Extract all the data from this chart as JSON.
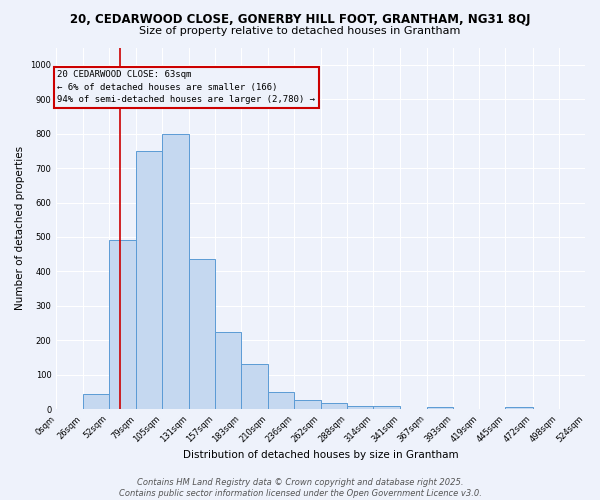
{
  "title_line1": "20, CEDARWOOD CLOSE, GONERBY HILL FOOT, GRANTHAM, NG31 8QJ",
  "title_line2": "Size of property relative to detached houses in Grantham",
  "xlabel": "Distribution of detached houses by size in Grantham",
  "ylabel": "Number of detached properties",
  "bin_edges": [
    0,
    26,
    52,
    79,
    105,
    131,
    157,
    183,
    210,
    236,
    262,
    288,
    314,
    341,
    367,
    393,
    419,
    445,
    472,
    498,
    524
  ],
  "bar_heights": [
    0,
    43,
    490,
    750,
    800,
    435,
    225,
    130,
    50,
    28,
    17,
    10,
    10,
    0,
    7,
    0,
    0,
    7,
    0,
    0
  ],
  "bar_color": "#c5d8f0",
  "bar_edgecolor": "#5b9bd5",
  "ylim": [
    0,
    1050
  ],
  "yticks": [
    0,
    100,
    200,
    300,
    400,
    500,
    600,
    700,
    800,
    900,
    1000
  ],
  "xtick_labels": [
    "0sqm",
    "26sqm",
    "52sqm",
    "79sqm",
    "105sqm",
    "131sqm",
    "157sqm",
    "183sqm",
    "210sqm",
    "236sqm",
    "262sqm",
    "288sqm",
    "314sqm",
    "341sqm",
    "367sqm",
    "393sqm",
    "419sqm",
    "445sqm",
    "472sqm",
    "498sqm",
    "524sqm"
  ],
  "property_size": 63,
  "vline_color": "#cc0000",
  "annotation_text": "20 CEDARWOOD CLOSE: 63sqm\n← 6% of detached houses are smaller (166)\n94% of semi-detached houses are larger (2,780) →",
  "annotation_box_color": "#cc0000",
  "footer_line1": "Contains HM Land Registry data © Crown copyright and database right 2025.",
  "footer_line2": "Contains public sector information licensed under the Open Government Licence v3.0.",
  "bg_color": "#eef2fb",
  "grid_color": "#ffffff",
  "title_fontsize": 8.5,
  "subtitle_fontsize": 8,
  "axis_label_fontsize": 7.5,
  "tick_fontsize": 6,
  "annotation_fontsize": 6.5,
  "footer_fontsize": 6
}
